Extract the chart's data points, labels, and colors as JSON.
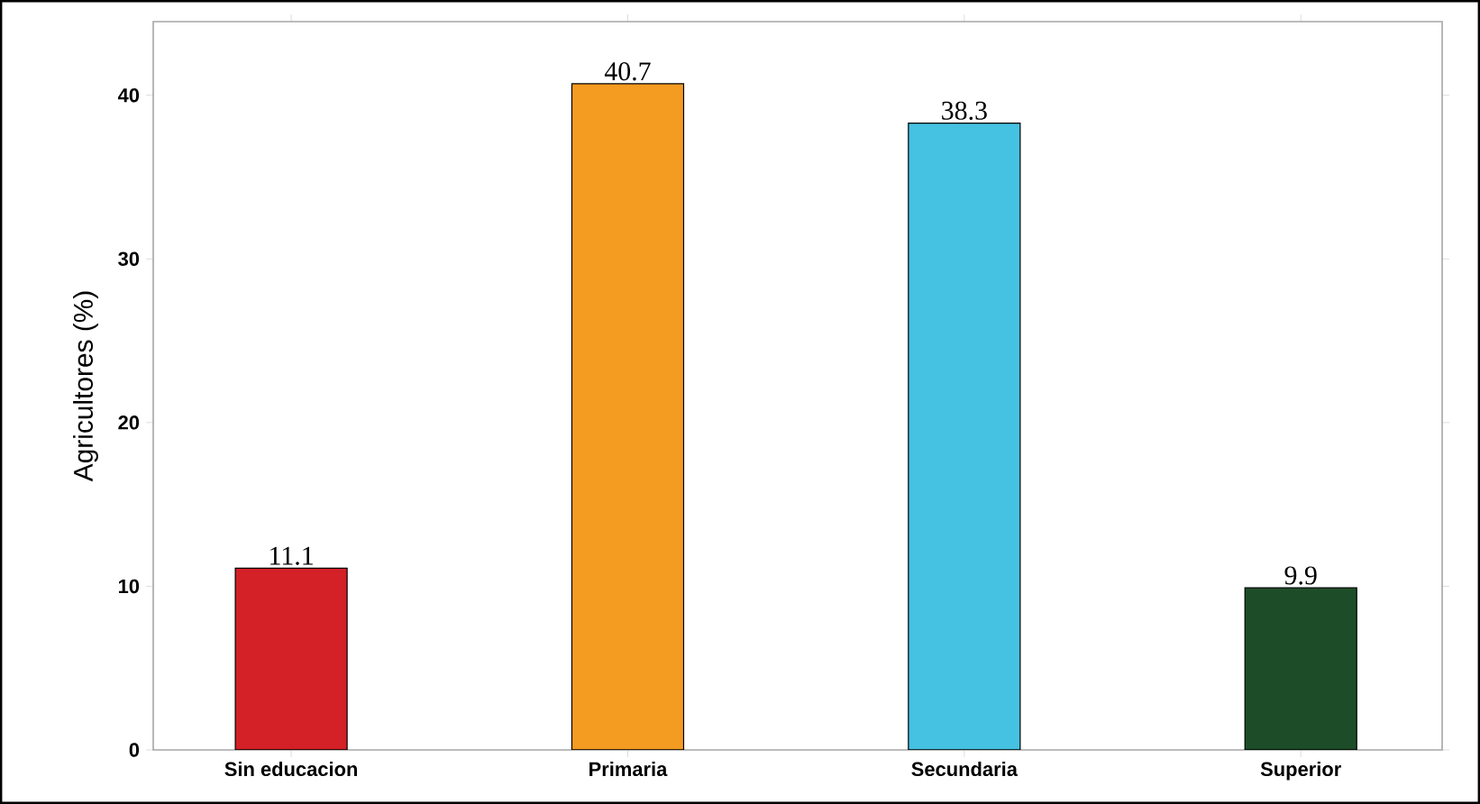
{
  "chart_data": {
    "type": "bar",
    "ylabel": "Agricultores (%)",
    "categories": [
      "Sin educacion",
      "Primaria",
      "Secundaria",
      "Superior"
    ],
    "values": [
      11.1,
      40.7,
      38.3,
      9.9
    ],
    "colors": [
      "#d42027",
      "#f49b22",
      "#45c1e1",
      "#1c4d28"
    ],
    "ylim": [
      0,
      44.5
    ],
    "yticks": [
      0,
      10,
      20,
      30,
      40
    ],
    "data_labels": true
  }
}
